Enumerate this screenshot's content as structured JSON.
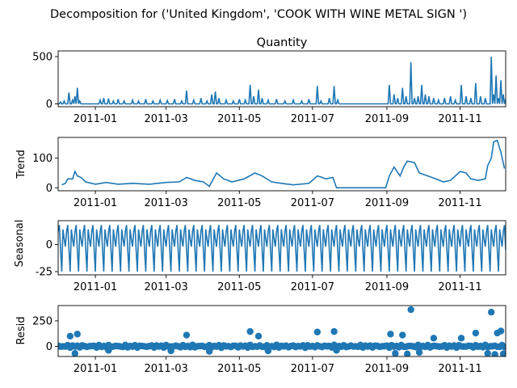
{
  "figure": {
    "title": "Decomposition for ('United Kingdom', 'COOK WITH WINE METAL SIGN ')"
  },
  "colors": {
    "line": "#1f77b4",
    "axis": "#000000",
    "background": "#ffffff"
  },
  "chart_data": [
    {
      "type": "line",
      "title": "Quantity",
      "ylabel": "",
      "xlim": [
        "2010-12-01",
        "2011-12-09"
      ],
      "ylim": [
        -30,
        560
      ],
      "yticks": [
        0,
        500
      ],
      "xticks": [
        "2011-01-01",
        "2011-03-01",
        "2011-05-01",
        "2011-07-01",
        "2011-09-01",
        "2011-11-01"
      ],
      "xticklabels": [
        "2011-01",
        "2011-03",
        "2011-05",
        "2011-07",
        "2011-09",
        "2011-11"
      ],
      "grid": false,
      "spikes": [
        [
          "2010-12-03",
          20
        ],
        [
          "2010-12-06",
          30
        ],
        [
          "2010-12-10",
          120
        ],
        [
          "2010-12-13",
          40
        ],
        [
          "2010-12-15",
          80
        ],
        [
          "2010-12-17",
          170
        ],
        [
          "2010-12-19",
          30
        ],
        [
          "2011-01-05",
          40
        ],
        [
          "2011-01-08",
          60
        ],
        [
          "2011-01-12",
          55
        ],
        [
          "2011-01-16",
          30
        ],
        [
          "2011-01-20",
          50
        ],
        [
          "2011-01-25",
          30
        ],
        [
          "2011-02-01",
          40
        ],
        [
          "2011-02-06",
          30
        ],
        [
          "2011-02-12",
          50
        ],
        [
          "2011-02-18",
          30
        ],
        [
          "2011-02-24",
          40
        ],
        [
          "2011-03-02",
          35
        ],
        [
          "2011-03-08",
          50
        ],
        [
          "2011-03-14",
          30
        ],
        [
          "2011-03-18",
          140
        ],
        [
          "2011-03-24",
          40
        ],
        [
          "2011-03-30",
          60
        ],
        [
          "2011-04-04",
          30
        ],
        [
          "2011-04-08",
          100
        ],
        [
          "2011-04-11",
          130
        ],
        [
          "2011-04-14",
          60
        ],
        [
          "2011-04-20",
          40
        ],
        [
          "2011-04-26",
          30
        ],
        [
          "2011-05-01",
          50
        ],
        [
          "2011-05-06",
          40
        ],
        [
          "2011-05-10",
          200
        ],
        [
          "2011-05-13",
          80
        ],
        [
          "2011-05-17",
          150
        ],
        [
          "2011-05-20",
          60
        ],
        [
          "2011-05-25",
          40
        ],
        [
          "2011-06-01",
          50
        ],
        [
          "2011-06-08",
          30
        ],
        [
          "2011-06-15",
          40
        ],
        [
          "2011-06-22",
          30
        ],
        [
          "2011-06-28",
          50
        ],
        [
          "2011-07-05",
          190
        ],
        [
          "2011-07-08",
          30
        ],
        [
          "2011-07-15",
          60
        ],
        [
          "2011-07-19",
          190
        ],
        [
          "2011-07-22",
          40
        ],
        [
          "2011-09-03",
          200
        ],
        [
          "2011-09-07",
          100
        ],
        [
          "2011-09-10",
          60
        ],
        [
          "2011-09-14",
          170
        ],
        [
          "2011-09-17",
          80
        ],
        [
          "2011-09-21",
          440
        ],
        [
          "2011-09-24",
          60
        ],
        [
          "2011-09-27",
          80
        ],
        [
          "2011-09-30",
          200
        ],
        [
          "2011-10-03",
          100
        ],
        [
          "2011-10-06",
          80
        ],
        [
          "2011-10-10",
          60
        ],
        [
          "2011-10-14",
          40
        ],
        [
          "2011-10-19",
          60
        ],
        [
          "2011-10-24",
          80
        ],
        [
          "2011-10-28",
          40
        ],
        [
          "2011-11-02",
          200
        ],
        [
          "2011-11-06",
          80
        ],
        [
          "2011-11-10",
          60
        ],
        [
          "2011-11-14",
          220
        ],
        [
          "2011-11-18",
          80
        ],
        [
          "2011-11-22",
          60
        ],
        [
          "2011-11-27",
          500
        ],
        [
          "2011-11-29",
          100
        ],
        [
          "2011-12-01",
          300
        ],
        [
          "2011-12-03",
          60
        ],
        [
          "2011-12-05",
          250
        ],
        [
          "2011-12-07",
          100
        ],
        [
          "2011-12-09",
          50
        ]
      ]
    },
    {
      "type": "line",
      "title": "",
      "ylabel": "Trend",
      "xlim": [
        "2010-12-01",
        "2011-12-09"
      ],
      "ylim": [
        -10,
        170
      ],
      "yticks": [
        0,
        100
      ],
      "xticks": [
        "2011-01-01",
        "2011-03-01",
        "2011-05-01",
        "2011-07-01",
        "2011-09-01",
        "2011-11-01"
      ],
      "xticklabels": [
        "2011-01",
        "2011-03",
        "2011-05",
        "2011-07",
        "2011-09",
        "2011-11"
      ],
      "grid": false,
      "points": [
        [
          "2010-12-04",
          10
        ],
        [
          "2010-12-07",
          15
        ],
        [
          "2010-12-09",
          30
        ],
        [
          "2010-12-13",
          30
        ],
        [
          "2010-12-15",
          55
        ],
        [
          "2010-12-17",
          40
        ],
        [
          "2010-12-20",
          35
        ],
        [
          "2010-12-24",
          20
        ],
        [
          "2011-01-01",
          12
        ],
        [
          "2011-01-10",
          18
        ],
        [
          "2011-01-20",
          12
        ],
        [
          "2011-02-01",
          15
        ],
        [
          "2011-02-15",
          12
        ],
        [
          "2011-03-01",
          18
        ],
        [
          "2011-03-12",
          20
        ],
        [
          "2011-03-18",
          35
        ],
        [
          "2011-03-25",
          25
        ],
        [
          "2011-04-01",
          20
        ],
        [
          "2011-04-06",
          5
        ],
        [
          "2011-04-12",
          50
        ],
        [
          "2011-04-18",
          30
        ],
        [
          "2011-04-25",
          20
        ],
        [
          "2011-05-05",
          30
        ],
        [
          "2011-05-14",
          50
        ],
        [
          "2011-05-20",
          40
        ],
        [
          "2011-05-28",
          20
        ],
        [
          "2011-06-05",
          15
        ],
        [
          "2011-06-15",
          10
        ],
        [
          "2011-06-28",
          15
        ],
        [
          "2011-07-05",
          40
        ],
        [
          "2011-07-09",
          35
        ],
        [
          "2011-07-12",
          30
        ],
        [
          "2011-07-18",
          35
        ],
        [
          "2011-07-21",
          0
        ],
        [
          "2011-08-31",
          0
        ],
        [
          "2011-09-03",
          40
        ],
        [
          "2011-09-07",
          70
        ],
        [
          "2011-09-12",
          40
        ],
        [
          "2011-09-15",
          70
        ],
        [
          "2011-09-18",
          90
        ],
        [
          "2011-09-24",
          85
        ],
        [
          "2011-09-28",
          50
        ],
        [
          "2011-10-05",
          40
        ],
        [
          "2011-10-12",
          30
        ],
        [
          "2011-10-18",
          20
        ],
        [
          "2011-10-24",
          25
        ],
        [
          "2011-11-01",
          55
        ],
        [
          "2011-11-06",
          50
        ],
        [
          "2011-11-10",
          30
        ],
        [
          "2011-11-16",
          25
        ],
        [
          "2011-11-22",
          30
        ],
        [
          "2011-11-24",
          75
        ],
        [
          "2011-11-27",
          100
        ],
        [
          "2011-11-29",
          155
        ],
        [
          "2011-12-02",
          160
        ],
        [
          "2011-12-05",
          120
        ],
        [
          "2011-12-08",
          65
        ]
      ]
    },
    {
      "type": "line",
      "title": "",
      "ylabel": "Seasonal",
      "xlim": [
        "2010-12-01",
        "2011-12-09"
      ],
      "ylim": [
        -28,
        22
      ],
      "yticks": [
        -25,
        0
      ],
      "xticks": [
        "2011-01-01",
        "2011-03-01",
        "2011-05-01",
        "2011-07-01",
        "2011-09-01",
        "2011-11-01"
      ],
      "xticklabels": [
        "2011-01",
        "2011-03",
        "2011-05",
        "2011-07",
        "2011-09",
        "2011-11"
      ],
      "grid": false,
      "period_days": 7,
      "weekly_pattern": [
        12,
        18,
        -5,
        -25,
        14,
        5,
        -2
      ]
    },
    {
      "type": "scatter",
      "title": "",
      "ylabel": "Resid",
      "xlim": [
        "2010-12-01",
        "2011-12-09"
      ],
      "ylim": [
        -100,
        400
      ],
      "yticks": [
        0,
        250
      ],
      "xticks": [
        "2011-01-01",
        "2011-03-01",
        "2011-05-01",
        "2011-07-01",
        "2011-09-01",
        "2011-11-01"
      ],
      "xticklabels": [
        "2011-01",
        "2011-03",
        "2011-05",
        "2011-07",
        "2011-09",
        "2011-11"
      ],
      "grid": false,
      "points": [
        [
          "2010-12-11",
          100
        ],
        [
          "2010-12-17",
          120
        ],
        [
          "2011-03-18",
          110
        ],
        [
          "2011-05-10",
          145
        ],
        [
          "2011-05-17",
          100
        ],
        [
          "2011-07-05",
          140
        ],
        [
          "2011-07-19",
          145
        ],
        [
          "2011-09-04",
          120
        ],
        [
          "2011-09-14",
          110
        ],
        [
          "2011-09-21",
          360
        ],
        [
          "2011-10-10",
          80
        ],
        [
          "2011-11-02",
          80
        ],
        [
          "2011-11-14",
          130
        ],
        [
          "2011-11-27",
          335
        ],
        [
          "2011-12-05",
          150
        ],
        [
          "2011-12-02",
          130
        ],
        [
          "2010-12-15",
          -70
        ],
        [
          "2011-01-12",
          -40
        ],
        [
          "2011-03-05",
          -45
        ],
        [
          "2011-04-06",
          -50
        ],
        [
          "2011-05-25",
          -45
        ],
        [
          "2011-07-21",
          -40
        ],
        [
          "2011-09-08",
          -70
        ],
        [
          "2011-09-18",
          -75
        ],
        [
          "2011-09-28",
          -60
        ],
        [
          "2011-11-24",
          -70
        ],
        [
          "2011-11-30",
          -80
        ],
        [
          "2011-12-07",
          -75
        ]
      ]
    }
  ]
}
